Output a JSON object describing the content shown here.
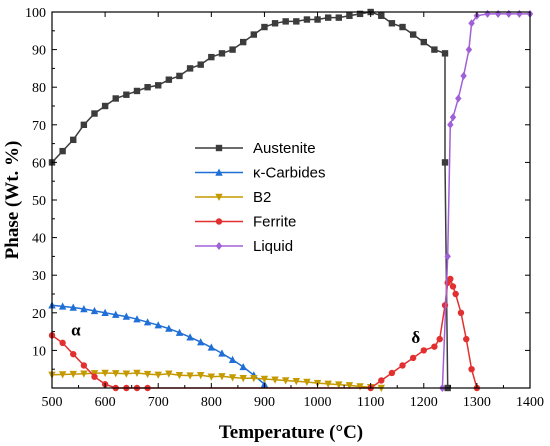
{
  "chart_data": {
    "type": "line",
    "xlabel": "Temperature (°C)",
    "ylabel": "Phase (Wt. %)",
    "xlim": [
      500,
      1400
    ],
    "ylim": [
      0,
      100
    ],
    "x_ticks": [
      "500",
      "600",
      "700",
      "800",
      "900",
      "1000",
      "1100",
      "1200",
      "1300",
      "1400"
    ],
    "y_ticks": [
      "10",
      "20",
      "30",
      "40",
      "50",
      "60",
      "70",
      "80",
      "90",
      "100"
    ],
    "legend_position": "center-left",
    "annotations": [
      {
        "text": "α",
        "x": 545,
        "y": 14
      },
      {
        "text": "δ",
        "x": 1185,
        "y": 12
      }
    ],
    "series": [
      {
        "name": "Austenite",
        "color": "#3c3c3c",
        "marker": "square",
        "points": [
          [
            500,
            60
          ],
          [
            520,
            63
          ],
          [
            540,
            66
          ],
          [
            560,
            70
          ],
          [
            580,
            73
          ],
          [
            600,
            75
          ],
          [
            620,
            77
          ],
          [
            640,
            78
          ],
          [
            660,
            79
          ],
          [
            680,
            80
          ],
          [
            700,
            80.5
          ],
          [
            720,
            82
          ],
          [
            740,
            83
          ],
          [
            760,
            85
          ],
          [
            780,
            86
          ],
          [
            800,
            88
          ],
          [
            820,
            89
          ],
          [
            840,
            90
          ],
          [
            860,
            92
          ],
          [
            880,
            94
          ],
          [
            900,
            96
          ],
          [
            920,
            97
          ],
          [
            940,
            97.5
          ],
          [
            960,
            97.5
          ],
          [
            980,
            98
          ],
          [
            1000,
            98
          ],
          [
            1020,
            98.5
          ],
          [
            1040,
            98.5
          ],
          [
            1060,
            99
          ],
          [
            1080,
            99.5
          ],
          [
            1100,
            100
          ],
          [
            1120,
            99
          ],
          [
            1140,
            97
          ],
          [
            1160,
            96
          ],
          [
            1180,
            94
          ],
          [
            1200,
            92
          ],
          [
            1220,
            90
          ],
          [
            1240,
            89
          ],
          [
            1240,
            60
          ],
          [
            1245,
            0
          ]
        ]
      },
      {
        "name": "κ-Carbides",
        "color": "#1f6fd6",
        "marker": "triangle-up",
        "points": [
          [
            500,
            22
          ],
          [
            520,
            21.7
          ],
          [
            540,
            21.4
          ],
          [
            560,
            21
          ],
          [
            580,
            20.5
          ],
          [
            600,
            20
          ],
          [
            620,
            19.5
          ],
          [
            640,
            19
          ],
          [
            660,
            18.3
          ],
          [
            680,
            17.5
          ],
          [
            700,
            16.7
          ],
          [
            720,
            15.8
          ],
          [
            740,
            14.7
          ],
          [
            760,
            13.5
          ],
          [
            780,
            12.2
          ],
          [
            800,
            10.8
          ],
          [
            820,
            9.2
          ],
          [
            840,
            7.5
          ],
          [
            860,
            5.6
          ],
          [
            880,
            3.4
          ],
          [
            900,
            1
          ]
        ]
      },
      {
        "name": "B2",
        "color": "#c49a00",
        "marker": "triangle-down",
        "points": [
          [
            500,
            3.5
          ],
          [
            520,
            3.6
          ],
          [
            540,
            3.7
          ],
          [
            560,
            3.8
          ],
          [
            580,
            3.9
          ],
          [
            600,
            4
          ],
          [
            620,
            3.9
          ],
          [
            640,
            3.8
          ],
          [
            660,
            4
          ],
          [
            680,
            3.7
          ],
          [
            700,
            3.5
          ],
          [
            720,
            3.8
          ],
          [
            740,
            3.4
          ],
          [
            760,
            3.3
          ],
          [
            780,
            3.4
          ],
          [
            800,
            3
          ],
          [
            820,
            3.1
          ],
          [
            840,
            2.8
          ],
          [
            860,
            2.6
          ],
          [
            880,
            2.6
          ],
          [
            900,
            2.4
          ],
          [
            920,
            2.2
          ],
          [
            940,
            2
          ],
          [
            960,
            1.8
          ],
          [
            980,
            1.6
          ],
          [
            1000,
            1.3
          ],
          [
            1020,
            1.1
          ],
          [
            1040,
            0.9
          ],
          [
            1060,
            0.7
          ],
          [
            1080,
            0.4
          ],
          [
            1100,
            0.2
          ],
          [
            1120,
            0
          ]
        ]
      },
      {
        "name": "Ferrite",
        "color": "#e23030",
        "marker": "circle",
        "points": [
          [
            500,
            14
          ],
          [
            520,
            12
          ],
          [
            540,
            9
          ],
          [
            560,
            6
          ],
          [
            580,
            3
          ],
          [
            600,
            1
          ],
          [
            620,
            0
          ],
          [
            640,
            0
          ],
          [
            660,
            0
          ],
          [
            680,
            0
          ],
          [
            1100,
            0
          ],
          [
            1120,
            2
          ],
          [
            1140,
            4
          ],
          [
            1160,
            6
          ],
          [
            1180,
            8
          ],
          [
            1200,
            10
          ],
          [
            1220,
            11
          ],
          [
            1230,
            13
          ],
          [
            1240,
            22
          ],
          [
            1245,
            28
          ],
          [
            1250,
            29
          ],
          [
            1255,
            27
          ],
          [
            1260,
            25
          ],
          [
            1270,
            20
          ],
          [
            1280,
            13
          ],
          [
            1290,
            5
          ],
          [
            1300,
            0
          ]
        ]
      },
      {
        "name": "Liquid",
        "color": "#a060d8",
        "marker": "diamond",
        "points": [
          [
            1235,
            0
          ],
          [
            1245,
            35
          ],
          [
            1250,
            70
          ],
          [
            1255,
            72
          ],
          [
            1265,
            77
          ],
          [
            1275,
            83
          ],
          [
            1285,
            90
          ],
          [
            1290,
            97
          ],
          [
            1300,
            99
          ],
          [
            1320,
            99.5
          ],
          [
            1340,
            99.5
          ],
          [
            1360,
            99.5
          ],
          [
            1380,
            99.5
          ],
          [
            1400,
            99.5
          ]
        ]
      }
    ]
  }
}
